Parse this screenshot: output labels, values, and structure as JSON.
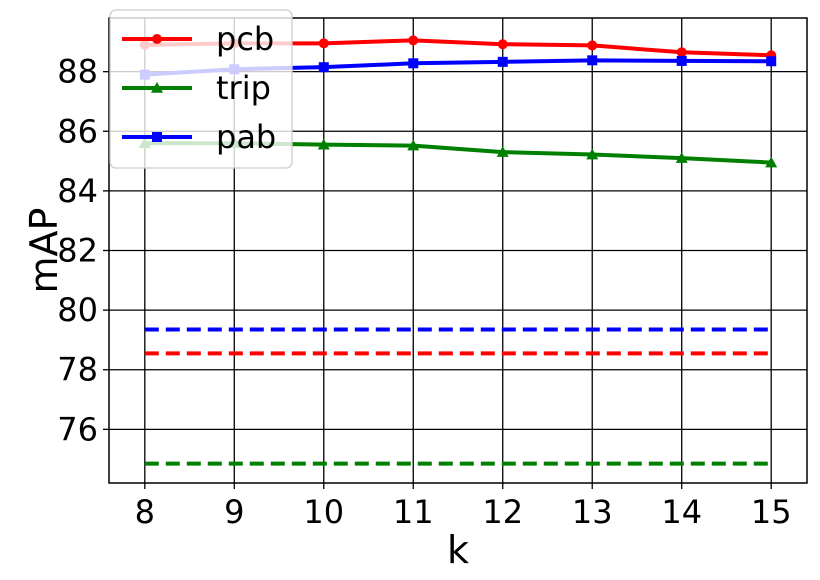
{
  "chart_data": {
    "type": "line",
    "title": "",
    "xlabel": "k",
    "ylabel": "mAP",
    "x": [
      8,
      9,
      10,
      11,
      12,
      13,
      14,
      15
    ],
    "xlim": [
      7.6,
      15.4
    ],
    "ylim": [
      74.2,
      89.8
    ],
    "yticks": [
      76,
      78,
      80,
      82,
      84,
      86,
      88
    ],
    "xticks": [
      8,
      9,
      10,
      11,
      12,
      13,
      14,
      15
    ],
    "grid": true,
    "legend_position": "top-left",
    "series": [
      {
        "name": "pcb",
        "color": "#ff0000",
        "marker": "circle",
        "values": [
          88.9,
          88.95,
          88.95,
          89.05,
          88.92,
          88.88,
          88.65,
          88.55
        ]
      },
      {
        "name": "trip",
        "color": "#008000",
        "marker": "triangle",
        "values": [
          85.6,
          85.6,
          85.55,
          85.52,
          85.3,
          85.22,
          85.1,
          84.95
        ]
      },
      {
        "name": "pab",
        "color": "#0000ff",
        "marker": "square",
        "values": [
          87.9,
          88.08,
          88.15,
          88.28,
          88.33,
          88.38,
          88.36,
          88.35
        ]
      }
    ],
    "reference_lines": [
      {
        "color": "#0000ff",
        "style": "dashed",
        "y": 79.35,
        "x_range": [
          8,
          15
        ]
      },
      {
        "color": "#ff0000",
        "style": "dashed",
        "y": 78.55,
        "x_range": [
          8,
          15
        ]
      },
      {
        "color": "#008000",
        "style": "dashed",
        "y": 74.85,
        "x_range": [
          8,
          15
        ]
      }
    ]
  }
}
